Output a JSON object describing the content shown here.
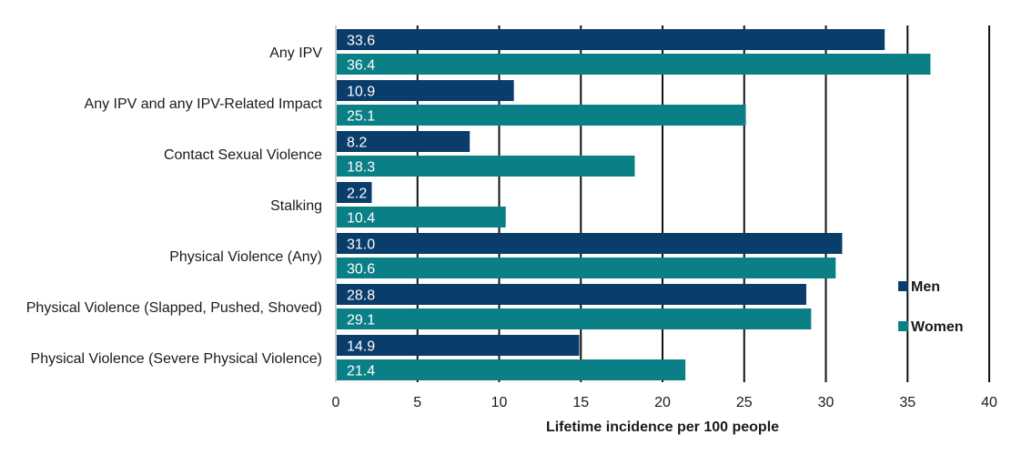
{
  "chart_data": {
    "type": "bar",
    "orientation": "horizontal",
    "categories": [
      "Any IPV",
      "Any IPV and any IPV-Related Impact",
      "Contact Sexual Violence",
      "Stalking",
      "Physical Violence (Any)",
      "Physical Violence (Slapped, Pushed, Shoved)",
      "Physical Violence (Severe Physical Violence)"
    ],
    "series": [
      {
        "name": "Men",
        "color": "#0b3d6b",
        "values": [
          33.6,
          10.9,
          8.2,
          2.2,
          31.0,
          28.8,
          14.9
        ],
        "labels": [
          "33.6",
          "10.9",
          "8.2",
          "2.2",
          "31.0",
          "28.8",
          "14.9"
        ]
      },
      {
        "name": "Women",
        "color": "#0b7f86",
        "values": [
          36.4,
          25.1,
          18.3,
          10.4,
          30.6,
          29.1,
          21.4
        ],
        "labels": [
          "36.4",
          "25.1",
          "18.3",
          "10.4",
          "30.6",
          "29.1",
          "21.4"
        ]
      }
    ],
    "title": "",
    "xlabel": "Lifetime incidence per 100 people",
    "ylabel": "",
    "xlim": [
      0,
      40
    ],
    "xticks": [
      0,
      5,
      10,
      15,
      20,
      25,
      30,
      35,
      40
    ],
    "grid": "vertical",
    "legend_position": "right"
  }
}
